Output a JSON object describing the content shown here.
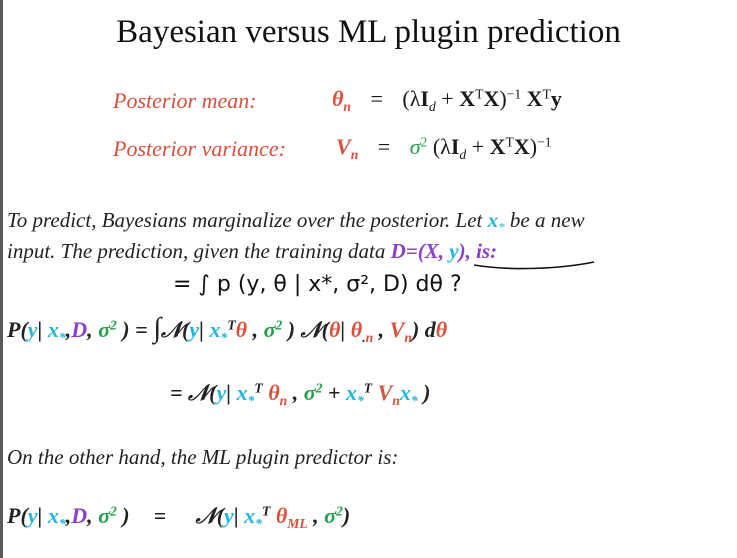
{
  "slide": {
    "title": "Bayesian versus ML plugin prediction"
  },
  "posterior": {
    "mean_label": "Posterior mean:",
    "variance_label": "Posterior variance:",
    "eq": "="
  },
  "text": {
    "line1": "To predict,  Bayesians marginalize over the posterior. Let ",
    "line1_x": "x",
    "line1_star": "*",
    "line1_end": " be a new",
    "line2_start": "input. The prediction, given the training data ",
    "line2_D": "D=(",
    "line2_X": "X",
    "line2_comma": ", ",
    "line2_y": "y",
    "line2_close": "), is:",
    "handwritten": "= ∫ p (y, θ | x*, σ², D) dθ  ?",
    "ml_intro": "On the other hand, the ML plugin predictor is:"
  },
  "colors": {
    "accent_red": "#d9503c",
    "green": "#22a04a",
    "cyan": "#22b6dd",
    "purple": "#8a3fd0"
  }
}
